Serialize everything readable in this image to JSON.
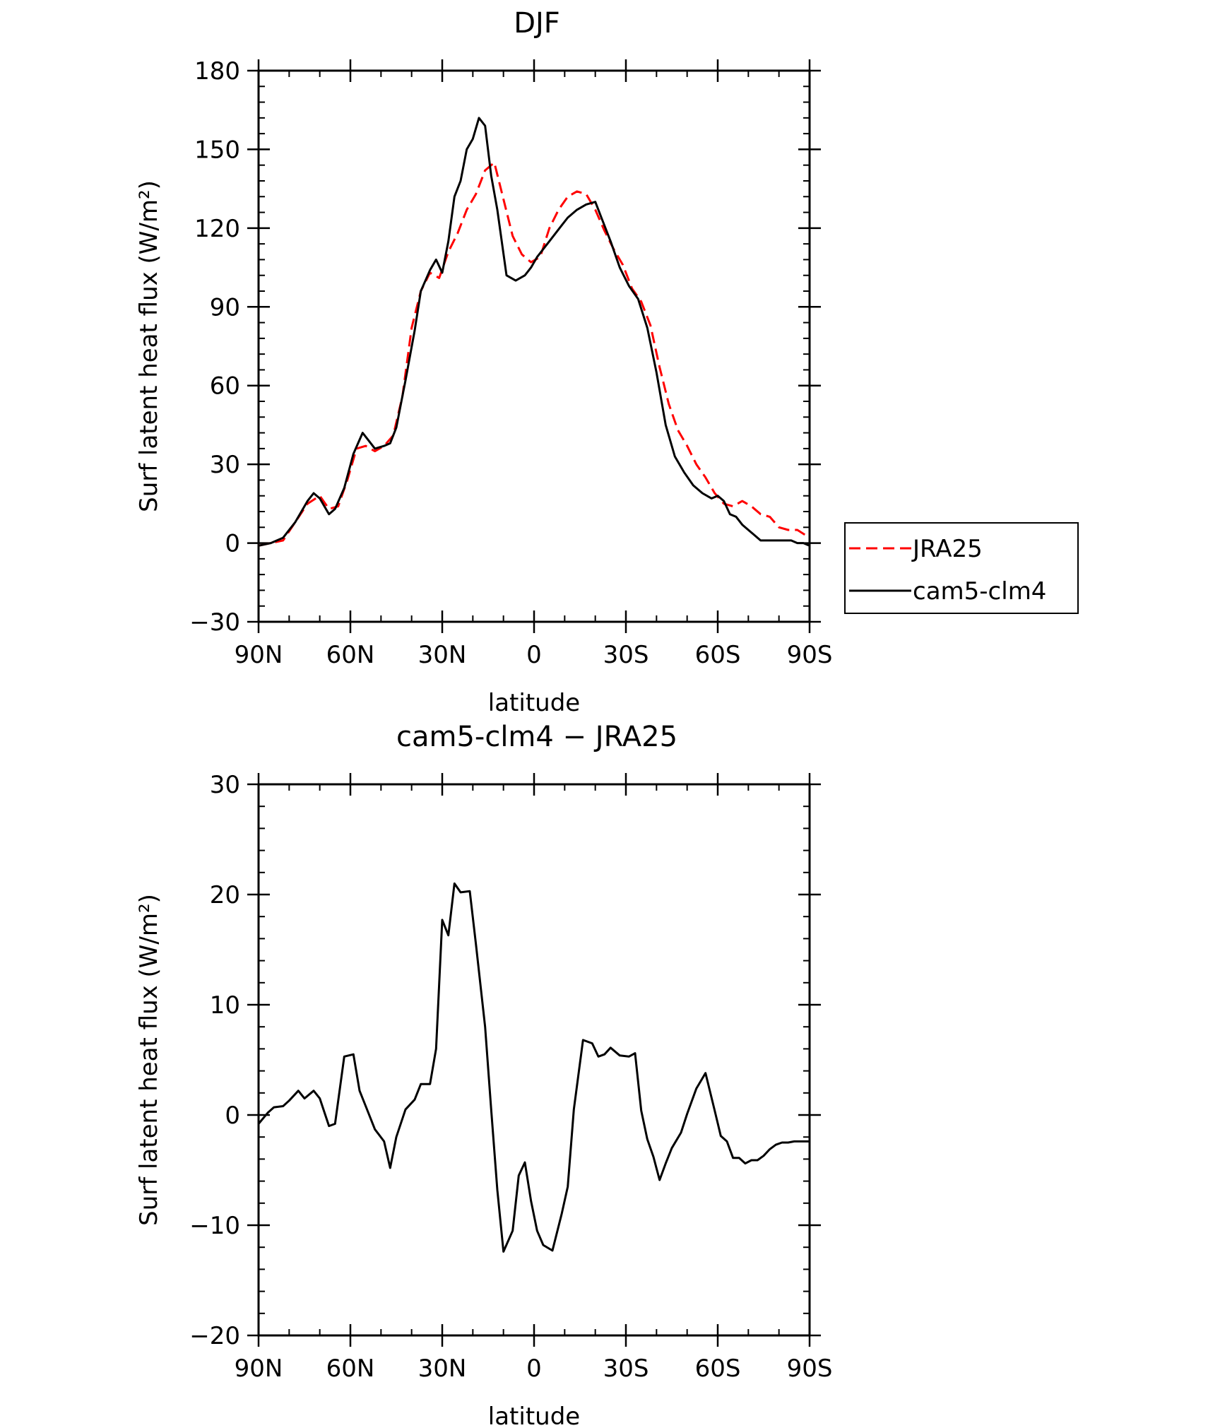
{
  "chart_data": [
    {
      "type": "line",
      "title": "DJF",
      "xlabel": "latitude",
      "ylabel": "Surf latent heat flux (W/m²)",
      "ylim": [
        -30,
        180
      ],
      "yticks": [
        -30,
        0,
        30,
        60,
        90,
        120,
        150,
        180
      ],
      "xlim": [
        90,
        -90
      ],
      "xticks": [
        90,
        60,
        30,
        0,
        -30,
        -60,
        -90
      ],
      "xticklabels": [
        "90N",
        "60N",
        "30N",
        "0",
        "30S",
        "60S",
        "90S"
      ],
      "legend": "right",
      "series": [
        {
          "name": "JRA25",
          "color": "#ff0000",
          "dash": "dashed",
          "x": [
            90,
            86,
            82,
            78,
            74,
            70,
            67,
            64,
            61,
            58,
            55,
            52,
            49,
            46,
            43,
            40,
            37,
            34,
            31,
            28,
            25,
            22,
            19,
            16,
            13,
            10,
            7,
            4,
            1,
            -2,
            -5,
            -8,
            -11,
            -14,
            -17,
            -20,
            -23,
            -26,
            -29,
            -32,
            -35,
            -38,
            -41,
            -44,
            -47,
            -50,
            -53,
            -56,
            -59,
            -62,
            -65,
            -68,
            -71,
            -74,
            -77,
            -80,
            -83,
            -86,
            -90
          ],
          "y": [
            -1,
            0,
            1,
            8,
            15,
            18,
            13,
            14,
            24,
            36,
            37,
            35,
            37,
            41,
            56,
            82,
            96,
            103,
            101,
            111,
            118,
            127,
            133,
            142,
            145,
            131,
            117,
            110,
            107,
            109,
            120,
            127,
            132,
            134,
            133,
            127,
            119,
            112,
            106,
            97,
            92,
            83,
            67,
            53,
            43,
            37,
            30,
            25,
            19,
            15,
            14,
            16,
            14,
            11,
            10,
            6,
            5,
            5,
            2
          ]
        },
        {
          "name": "cam5-clm4",
          "color": "#000000",
          "dash": "solid",
          "x": [
            90,
            86,
            82,
            78,
            74,
            72,
            70,
            67,
            65,
            62,
            59,
            56,
            54,
            52,
            49,
            47,
            45,
            42,
            39,
            37,
            34,
            32,
            30,
            28,
            26,
            24,
            22,
            20,
            18,
            16,
            14,
            12,
            9,
            6,
            3,
            1,
            -1,
            -3,
            -5,
            -7,
            -9,
            -11,
            -14,
            -17,
            -20,
            -22,
            -25,
            -28,
            -31,
            -34,
            -37,
            -40,
            -43,
            -46,
            -49,
            -52,
            -55,
            -58,
            -60,
            -62,
            -64,
            -66,
            -68,
            -70,
            -72,
            -74,
            -76,
            -78,
            -80,
            -82,
            -84,
            -86,
            -88,
            -90
          ],
          "y": [
            -1,
            0,
            2,
            8,
            16,
            19,
            17,
            11,
            13,
            21,
            34,
            42,
            39,
            36,
            37,
            38,
            44,
            62,
            81,
            96,
            104,
            108,
            103,
            115,
            132,
            138,
            150,
            154,
            162,
            159,
            140,
            127,
            102,
            100,
            102,
            105,
            109,
            112,
            115,
            118,
            121,
            124,
            127,
            129,
            130,
            124,
            115,
            105,
            98,
            93,
            82,
            65,
            45,
            33,
            27,
            22,
            19,
            17,
            18,
            16,
            11,
            10,
            7,
            5,
            3,
            1,
            1,
            1,
            1,
            1,
            1,
            0,
            0,
            -1
          ]
        }
      ]
    },
    {
      "type": "line",
      "title": "cam5-clm4 − JRA25",
      "xlabel": "latitude",
      "ylabel": "Surf latent heat flux (W/m²)",
      "ylim": [
        -20,
        30
      ],
      "yticks": [
        -20,
        -10,
        0,
        10,
        20,
        30
      ],
      "xlim": [
        90,
        -90
      ],
      "xticks": [
        90,
        60,
        30,
        0,
        -30,
        -60,
        -90
      ],
      "xticklabels": [
        "90N",
        "60N",
        "30N",
        "0",
        "30S",
        "60S",
        "90S"
      ],
      "series": [
        {
          "color": "#000000",
          "dash": "solid",
          "x": [
            90,
            87,
            85,
            82,
            80,
            77,
            75,
            72,
            70,
            67,
            65,
            62,
            59,
            57,
            55,
            52,
            49,
            47,
            45,
            42,
            39,
            37,
            34,
            32,
            30,
            28,
            26,
            24,
            21,
            19,
            16,
            14,
            12,
            10,
            7,
            5,
            3,
            1,
            -1,
            -3,
            -6,
            -9,
            -11,
            -13,
            -16,
            -19,
            -21,
            -23,
            -25,
            -28,
            -31,
            -33,
            -35,
            -37,
            -39,
            -41,
            -43,
            -45,
            -48,
            -50,
            -53,
            -56,
            -59,
            -61,
            -63,
            -65,
            -67,
            -69,
            -71,
            -73,
            -75,
            -77,
            -79,
            -81,
            -83,
            -85,
            -87,
            -90
          ],
          "y": [
            -0.8,
            0.2,
            0.7,
            0.8,
            1.3,
            2.2,
            1.5,
            2.2,
            1.5,
            -1.0,
            -0.8,
            5.3,
            5.5,
            2.2,
            0.8,
            -1.3,
            -2.4,
            -4.8,
            -2.0,
            0.5,
            1.4,
            2.8,
            2.8,
            6.0,
            17.7,
            16.3,
            21.0,
            20.2,
            20.3,
            15.5,
            8.0,
            0.5,
            -6.8,
            -12.4,
            -10.5,
            -5.5,
            -4.3,
            -7.8,
            -10.5,
            -11.8,
            -12.3,
            -9.0,
            -6.5,
            0.5,
            6.8,
            6.5,
            5.3,
            5.5,
            6.1,
            5.4,
            5.3,
            5.6,
            0.4,
            -2.2,
            -3.8,
            -5.9,
            -4.4,
            -3.0,
            -1.6,
            0.1,
            2.4,
            3.8,
            0.4,
            -1.9,
            -2.4,
            -3.9,
            -3.9,
            -4.4,
            -4.1,
            -4.1,
            -3.7,
            -3.1,
            -2.7,
            -2.5,
            -2.5,
            -2.4,
            -2.4,
            -2.4
          ]
        }
      ]
    }
  ]
}
